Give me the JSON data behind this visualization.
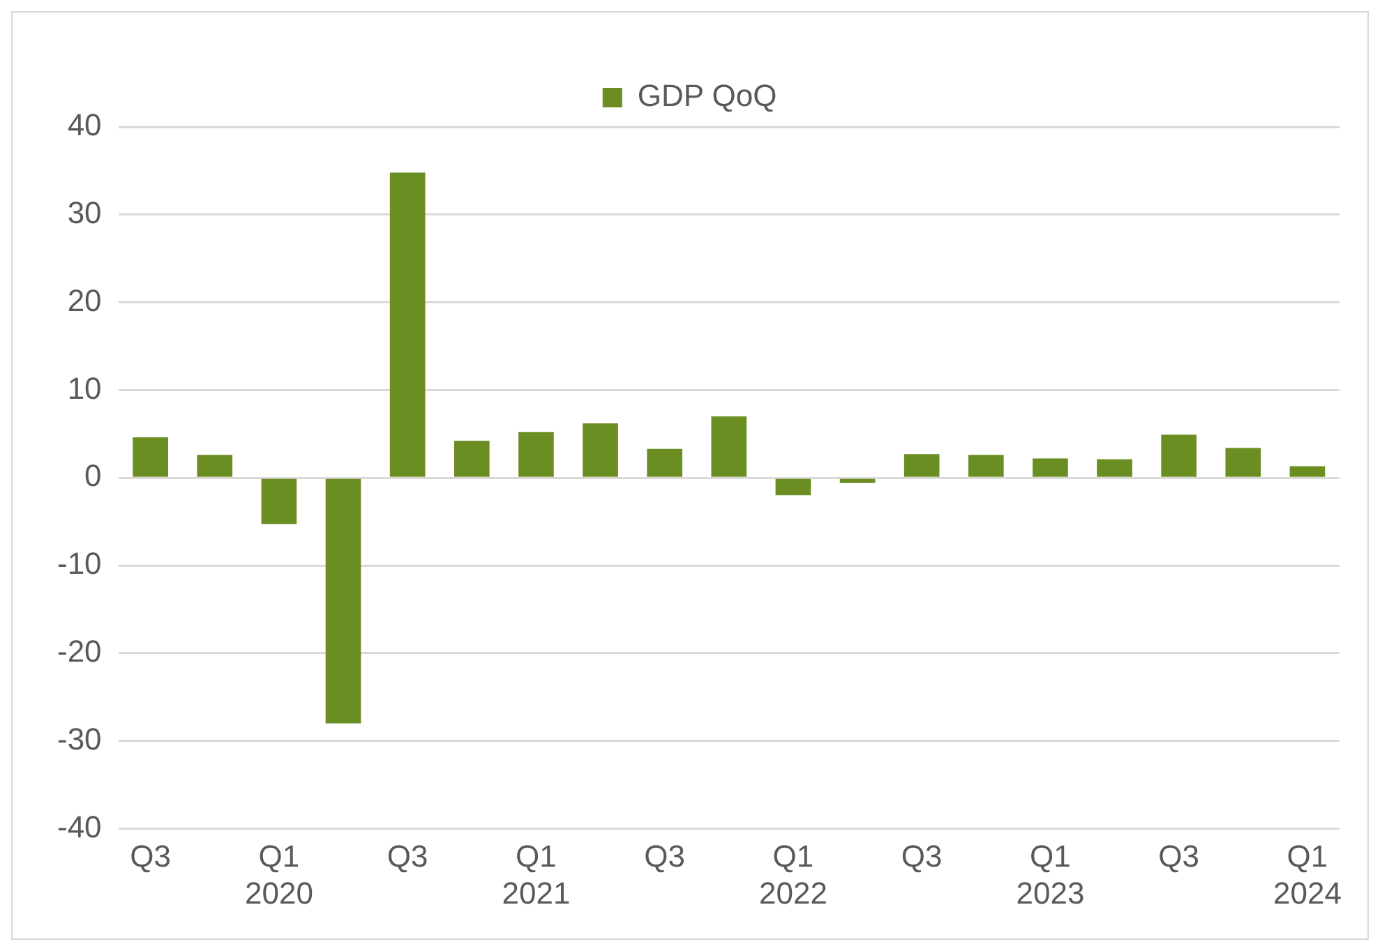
{
  "chart_data": {
    "type": "bar",
    "categories": [
      "Q3",
      null,
      "Q1\n2020",
      null,
      "Q3",
      null,
      "Q1\n2021",
      null,
      "Q3",
      null,
      "Q1\n2022",
      null,
      "Q3",
      null,
      "Q1\n2023",
      null,
      "Q3",
      null,
      "Q1\n2024"
    ],
    "series": [
      {
        "name": "GDP QoQ",
        "color": "#6b8e23",
        "values": [
          4.6,
          2.6,
          -5.3,
          -28,
          34.8,
          4.2,
          5.2,
          6.2,
          3.3,
          7.0,
          -2.0,
          -0.6,
          2.7,
          2.6,
          2.2,
          2.1,
          4.9,
          3.4,
          1.3
        ]
      }
    ],
    "ylim": [
      -40,
      40
    ],
    "yticks": [
      -40,
      -30,
      -20,
      -10,
      0,
      10,
      20,
      30,
      40
    ],
    "grid": "y",
    "legend": "top"
  }
}
